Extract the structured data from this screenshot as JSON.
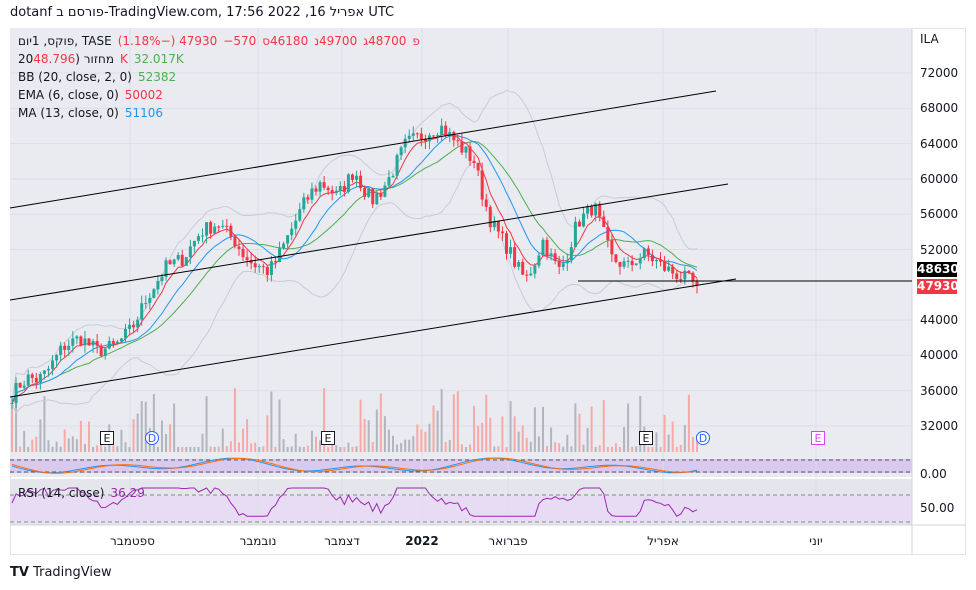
{
  "header": {
    "title": "dotanf פורסם ב-TradingView.com, 17:56 2022 ,16 אפריל UTC"
  },
  "legend": {
    "symbol": "פוקס, 1יום, TASE",
    "open_label": "פ",
    "open": "48700",
    "high_label": "ג",
    "high": "49700",
    "low_label": "נ",
    "low": "46180",
    "close_label": "ס",
    "close": "47930",
    "change": "−570 (−1.18%)",
    "volume_label": "מחזור (20",
    "volume": "48.796K",
    "volume_ma": "32.017K",
    "bb_label": "BB (20, close, 2, 0)",
    "bb_value": "52382",
    "ema_label": "EMA (6, close, 0)",
    "ema_value": "50002",
    "ma_label": "MA (13, close, 0)",
    "ma_value": "51106",
    "rsi_label": "RSI (14, close)",
    "rsi_value": "36.29"
  },
  "price_axis": {
    "currency": "ILA",
    "ticks": [
      "72000",
      "68000",
      "64000",
      "60000",
      "56000",
      "52000",
      "44000",
      "40000",
      "36000",
      "32000"
    ],
    "line_tag": "48630",
    "last_tag": "47930",
    "stoch_tick": "0.00",
    "rsi_tick": "50.00"
  },
  "time_axis": [
    "ספטמבר",
    "נובמבר",
    "דצמבר",
    "2022",
    "פברואר",
    "אפריל",
    "יוני"
  ],
  "events": [
    "E",
    "D",
    "E",
    "E",
    "D",
    "E"
  ],
  "footer": {
    "logo": "TradingView"
  },
  "colors": {
    "up": "#26a69a",
    "down": "#f23645",
    "ema": "#f23645",
    "ma": "#2196f3",
    "bb": "#4caf50",
    "rsi": "#9c27b0"
  },
  "chart_data": {
    "type": "candlestick",
    "title": "פוקס, 1יום, TASE",
    "ylim": [
      30000,
      74000
    ],
    "closes": [
      35500,
      36800,
      37500,
      37200,
      38000,
      39500,
      41000,
      41500,
      42000,
      41200,
      40500,
      40800,
      41000,
      42000,
      43000,
      45000,
      47000,
      48500,
      50000,
      50500,
      51000,
      52500,
      54000,
      54500,
      55000,
      54000,
      53000,
      51500,
      50500,
      50000,
      49500,
      51000,
      53000,
      55000,
      57000,
      58500,
      59500,
      59000,
      58000,
      59500,
      61000,
      59000,
      57500,
      58500,
      60000,
      62000,
      64000,
      64500,
      65000,
      65500,
      66000,
      65000,
      64000,
      63000,
      62000,
      58000,
      55000,
      53500,
      52000,
      50000,
      48500,
      50500,
      53000,
      51000,
      49500,
      52000,
      55000,
      56000,
      57000,
      54000,
      51000,
      50500,
      50000,
      51000,
      51500,
      50800,
      50000,
      49500,
      49000,
      48500,
      47930
    ],
    "rsi_last": 36.29
  }
}
